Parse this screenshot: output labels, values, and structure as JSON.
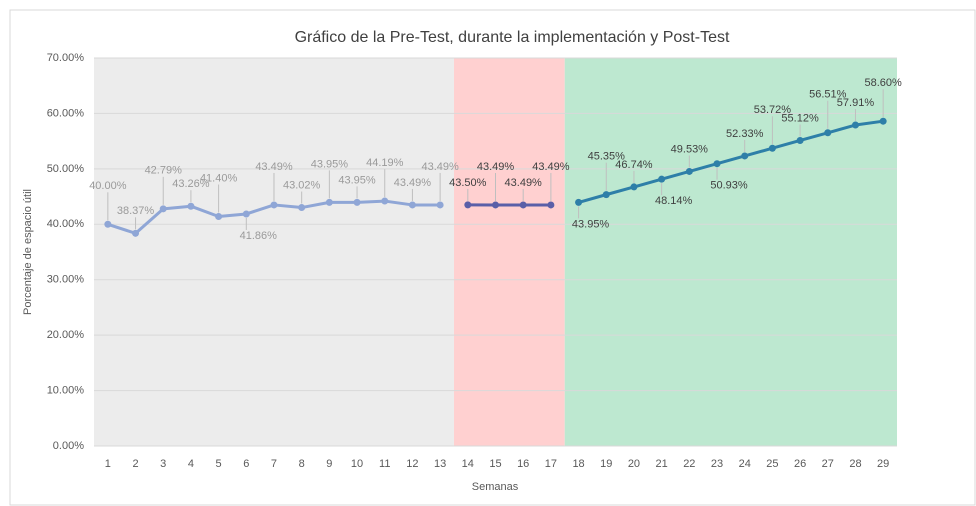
{
  "chart_data": {
    "type": "line",
    "title": "Gráfico de la Pre-Test, durante la implementación y Post-Test",
    "xlabel": "Semanas",
    "ylabel": "Porcentaje de espacio útil",
    "categories": [
      "1",
      "2",
      "3",
      "4",
      "5",
      "6",
      "7",
      "8",
      "9",
      "10",
      "11",
      "12",
      "13",
      "14",
      "15",
      "16",
      "17",
      "18",
      "19",
      "20",
      "21",
      "22",
      "23",
      "24",
      "25",
      "26",
      "27",
      "28",
      "29"
    ],
    "ylim": [
      0,
      70
    ],
    "yticks": [
      {
        "value": 0,
        "label": "0.00%"
      },
      {
        "value": 10,
        "label": "10.00%"
      },
      {
        "value": 20,
        "label": "20.00%"
      },
      {
        "value": 30,
        "label": "30.00%"
      },
      {
        "value": 40,
        "label": "40.00%"
      },
      {
        "value": 50,
        "label": "50.00%"
      },
      {
        "value": 60,
        "label": "60.00%"
      },
      {
        "value": 70,
        "label": "70.00%"
      }
    ],
    "grid": true,
    "series": [
      {
        "color": "#8fa6d6",
        "band_color": "#ececec",
        "label_color": "#9a9a9a",
        "values": [
          40.0,
          38.37,
          42.79,
          43.26,
          41.4,
          41.86,
          43.49,
          43.02,
          43.95,
          43.95,
          44.19,
          43.49,
          43.49,
          null,
          null,
          null,
          null,
          null,
          null,
          null,
          null,
          null,
          null,
          null,
          null,
          null,
          null,
          null,
          null
        ],
        "value_labels": [
          "40.00%",
          "38.37%",
          "42.79%",
          "43.26%",
          "41.40%",
          "41.86%",
          "43.49%",
          "43.02%",
          "43.95%",
          "43.95%",
          "44.19%",
          "43.49%",
          "43.49%",
          null,
          null,
          null,
          null,
          null,
          null,
          null,
          null,
          null,
          null,
          null,
          null,
          null,
          null,
          null,
          null
        ]
      },
      {
        "color": "#5a5fa8",
        "band_color": "#ffd0d0",
        "label_color": "#404040",
        "values": [
          null,
          null,
          null,
          null,
          null,
          null,
          null,
          null,
          null,
          null,
          null,
          null,
          null,
          43.5,
          43.49,
          43.49,
          43.49,
          null,
          null,
          null,
          null,
          null,
          null,
          null,
          null,
          null,
          null,
          null,
          null
        ],
        "value_labels": [
          null,
          null,
          null,
          null,
          null,
          null,
          null,
          null,
          null,
          null,
          null,
          null,
          null,
          "43.50%",
          "43.49%",
          "43.49%",
          "43.49%",
          null,
          null,
          null,
          null,
          null,
          null,
          null,
          null,
          null,
          null,
          null,
          null
        ]
      },
      {
        "color": "#2e7fa8",
        "band_color": "#bde8d0",
        "label_color": "#404040",
        "values": [
          null,
          null,
          null,
          null,
          null,
          null,
          null,
          null,
          null,
          null,
          null,
          null,
          null,
          null,
          null,
          null,
          null,
          43.95,
          45.35,
          46.74,
          48.14,
          49.53,
          50.93,
          52.33,
          53.72,
          55.12,
          56.51,
          57.91,
          58.6
        ],
        "value_labels": [
          null,
          null,
          null,
          null,
          null,
          null,
          null,
          null,
          null,
          null,
          null,
          null,
          null,
          null,
          null,
          null,
          null,
          "43.95%",
          "45.35%",
          "46.74%",
          "48.14%",
          "49.53%",
          "50.93%",
          "52.33%",
          "53.72%",
          "55.12%",
          "56.51%",
          "57.91%",
          "58.60%"
        ]
      }
    ]
  }
}
